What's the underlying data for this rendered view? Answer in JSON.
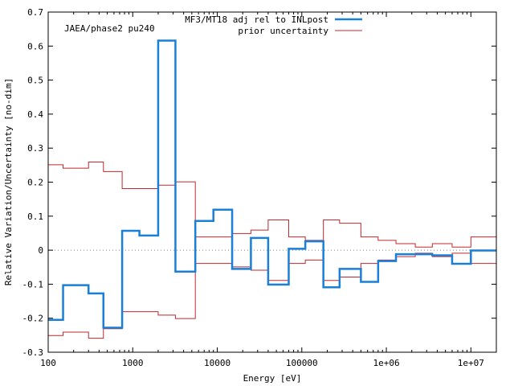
{
  "chart_data": {
    "type": "line",
    "title": "",
    "annotation": "JAEA/phase2 pu240",
    "xlabel": "Energy [eV]",
    "ylabel": "Relative Variation/Uncertainty [no-dim]",
    "xscale": "log",
    "xlim": [
      100,
      20000000
    ],
    "ylim": [
      -0.3,
      0.7
    ],
    "legend_position": "top-right",
    "x_ticks": [
      {
        "value": 100,
        "label": "100"
      },
      {
        "value": 1000,
        "label": "1000"
      },
      {
        "value": 10000,
        "label": "10000"
      },
      {
        "value": 100000,
        "label": "100000"
      },
      {
        "value": 1000000,
        "label": "1e+06"
      },
      {
        "value": 10000000,
        "label": "1e+07"
      }
    ],
    "y_ticks": [
      {
        "value": -0.3,
        "label": "-0.3"
      },
      {
        "value": -0.2,
        "label": "-0.2"
      },
      {
        "value": -0.1,
        "label": "-0.1"
      },
      {
        "value": 0,
        "label": "0"
      },
      {
        "value": 0.1,
        "label": "0.1"
      },
      {
        "value": 0.2,
        "label": "0.2"
      },
      {
        "value": 0.3,
        "label": "0.3"
      },
      {
        "value": 0.4,
        "label": "0.4"
      },
      {
        "value": 0.5,
        "label": "0.5"
      },
      {
        "value": 0.6,
        "label": "0.6"
      },
      {
        "value": 0.7,
        "label": "0.7"
      }
    ],
    "group_boundaries_eV": [
      100,
      150,
      300,
      450,
      750,
      1200,
      2000,
      3200,
      5500,
      9000,
      15000,
      25000,
      40000,
      70000,
      110000,
      180000,
      280000,
      500000,
      800000,
      1300000,
      2200000,
      3500000,
      6000000,
      10000000,
      20000000
    ],
    "series": [
      {
        "name": "MF3/MT18 adj rel to INLpost",
        "color": "#1a7fd6",
        "style": "step-thick",
        "values": [
          -0.205,
          -0.103,
          -0.127,
          -0.228,
          0.057,
          0.043,
          0.616,
          -0.063,
          0.086,
          0.119,
          -0.055,
          0.036,
          -0.101,
          0.004,
          0.026,
          -0.109,
          -0.055,
          -0.093,
          -0.032,
          -0.012,
          -0.012,
          -0.015,
          -0.04,
          -0.001
        ]
      },
      {
        "name": "prior uncertainty",
        "color": "#c0282d",
        "style": "step-thin-symmetric",
        "values": [
          0.251,
          0.241,
          0.259,
          0.231,
          0.181,
          0.181,
          0.191,
          0.201,
          0.039,
          0.039,
          0.049,
          0.059,
          0.089,
          0.039,
          0.029,
          0.089,
          0.079,
          0.039,
          0.029,
          0.019,
          0.009,
          0.019,
          0.009,
          0.039
        ]
      }
    ]
  }
}
